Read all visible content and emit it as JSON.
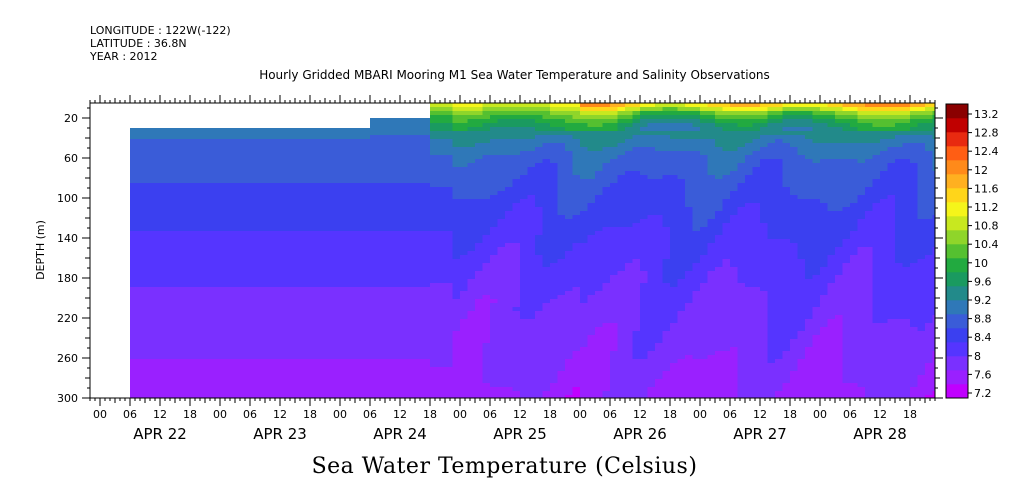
{
  "header": {
    "longitude": "LONGITUDE : 122W(-122)",
    "latitude": "LATITUDE : 36.8N",
    "year": "YEAR : 2012",
    "title": "Hourly Gridded MBARI Mooring M1 Sea Water Temperature and Salinity Observations"
  },
  "chart_data": {
    "type": "heatmap",
    "title": "Hourly Gridded MBARI Mooring M1 Sea Water Temperature and Salinity Observations",
    "xlabel": "Sea Water Temperature (Celsius)",
    "ylabel": "DEPTH (m)",
    "x_hour_labels": [
      "00",
      "06",
      "12",
      "18",
      "00",
      "06",
      "12",
      "18",
      "00",
      "06",
      "12",
      "18",
      "00",
      "06",
      "12",
      "18",
      "00",
      "06",
      "12",
      "18",
      "00",
      "06",
      "12",
      "18",
      "00",
      "06",
      "12",
      "18"
    ],
    "x_day_labels": [
      "APR 22",
      "APR 23",
      "APR 24",
      "APR 25",
      "APR 26",
      "APR 27",
      "APR 28"
    ],
    "xlim_hours": [
      0,
      168
    ],
    "ylim": [
      300,
      5
    ],
    "y_ticks": [
      20,
      60,
      100,
      140,
      180,
      220,
      260,
      300
    ],
    "colorbar": {
      "levels": [
        7.2,
        7.6,
        8,
        8.4,
        8.8,
        9.2,
        9.6,
        10,
        10.4,
        10.8,
        11.2,
        11.6,
        12,
        12.4,
        12.8,
        13.2
      ],
      "labels": [
        "13.2",
        "12.8",
        "12.4",
        "12",
        "11.6",
        "11.2",
        "10.8",
        "10.4",
        "10",
        "9.6",
        "9.2",
        "8.8",
        "8.4",
        "8",
        "7.6",
        "7.2"
      ],
      "colors": [
        "#c000ff",
        "#9a20ff",
        "#7a30ff",
        "#5535ff",
        "#3b40f0",
        "#3a5cd8",
        "#2f78b8",
        "#228a8a",
        "#1a9a60",
        "#22aa40",
        "#55c030",
        "#8fd52a",
        "#c8e81f",
        "#f5f51a",
        "#ffd51a",
        "#ffb020",
        "#ff8a1a",
        "#ff5e14",
        "#e82a10",
        "#c00000",
        "#8a0000"
      ]
    },
    "profiles": [
      {
        "hour": 6,
        "depth_start": 30,
        "temps_by_depth_m": {
          "30": 9.3,
          "60": 9.05,
          "90": 8.75,
          "120": 8.5,
          "150": 8.25,
          "180": 8.05,
          "210": 7.9,
          "240": 7.75,
          "270": 7.55,
          "300": 7.3
        }
      },
      {
        "hour": 54,
        "depth_start": 20,
        "temps_by_depth_m": {
          "20": 9.3,
          "60": 9.05,
          "90": 8.75,
          "120": 8.5,
          "150": 8.25,
          "180": 8.05,
          "210": 7.9,
          "240": 7.75,
          "270": 7.55,
          "300": 7.3
        }
      },
      {
        "hour": 66,
        "depth_start": 5,
        "temps_by_depth_m": {
          "5": 12.0,
          "15": 11.0,
          "25": 10.3,
          "40": 9.6,
          "60": 9.1,
          "90": 8.8,
          "120": 8.5,
          "160": 8.2,
          "200": 7.9,
          "250": 7.7,
          "300": 7.45
        }
      },
      {
        "hour": 96,
        "depth_start": 5,
        "temps_by_depth_m": {
          "5": 13.0,
          "15": 11.2,
          "25": 10.2,
          "40": 9.6,
          "60": 9.1,
          "90": 8.8,
          "120": 8.55,
          "160": 8.25,
          "200": 8.0,
          "250": 7.75,
          "300": 7.5
        }
      },
      {
        "hour": 168,
        "depth_start": 5,
        "temps_by_depth_m": {
          "5": 12.6,
          "15": 11.4,
          "25": 10.4,
          "40": 9.7,
          "60": 9.2,
          "90": 8.8,
          "120": 8.5,
          "160": 8.2,
          "200": 7.95,
          "250": 7.7,
          "300": 7.45
        }
      }
    ]
  }
}
